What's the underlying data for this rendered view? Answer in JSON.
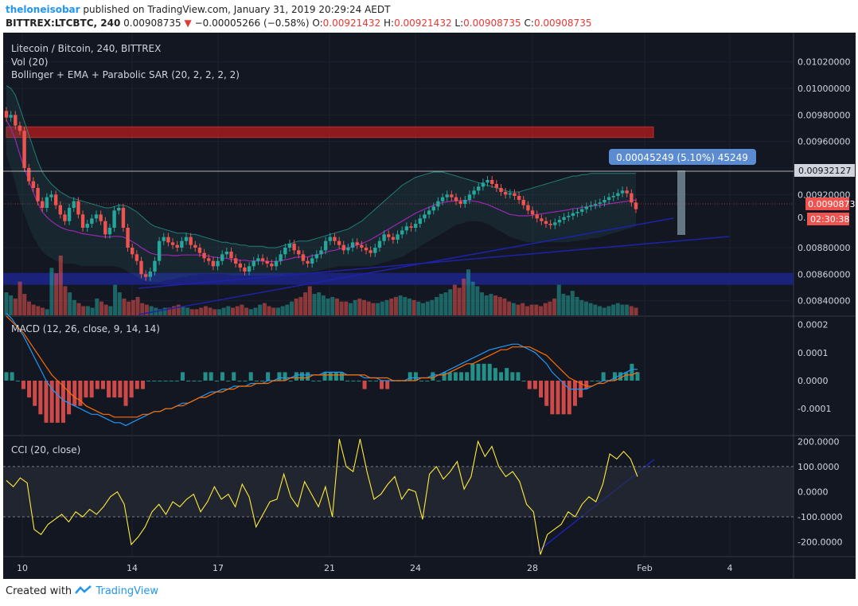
{
  "header": {
    "author": "theloneisobar",
    "published_text": "published on TradingView.com, January 31, 2019 20:29:24 AEDT",
    "symbol": "BITTREX:LTCBTC, 240",
    "last": "0.00908735",
    "change_arrow": "▼",
    "change": "−0.00005266 (−0.58%)",
    "o_label": "O:",
    "o": "0.00921432",
    "h_label": "H:",
    "h": "0.00921432",
    "l_label": "L:",
    "l": "0.00908735",
    "c_label": "C:",
    "c": "0.00908735"
  },
  "legend": {
    "title": "Litecoin / Bitcoin, 240, BITTREX",
    "vol": "Vol (20)",
    "bb": "Bollinger + EMA + Parabolic SAR (20, 2, 2, 2, 2)",
    "macd": "MACD (12, 26, close, 9, 14, 14)",
    "cci": "CCI (20, close)"
  },
  "price_labels": {
    "current_line": "0.00932127",
    "last_price": "0.00908735",
    "countdown": "02:30:38",
    "partial": "0.",
    "measure": "0.00045249 (5.10%) 45249"
  },
  "footer": {
    "prefix": "Created with",
    "brand": "TradingView"
  },
  "colors": {
    "background": "#131722",
    "up": "#26a69a",
    "down": "#ef5350",
    "macd_line": "#2196f3",
    "signal_line": "#ff6d00",
    "cci_line": "#ffeb3b",
    "trendline": "#1e22aa",
    "resistance_zone": "#b71c1c",
    "support_zone": "#1a237e"
  },
  "chart_data": [
    {
      "type": "candlestick",
      "title": "Litecoin / Bitcoin, 240, BITTREX",
      "x_ticks": [
        "10",
        "14",
        "17",
        "21",
        "24",
        "28",
        "Feb",
        "4"
      ],
      "y_ticks": [
        "0.01020000",
        "0.01000000",
        "0.00980000",
        "0.00960000",
        "0.00940000",
        "0.00920000",
        "0.00880000",
        "0.00860000",
        "0.00840000"
      ],
      "y_tick_values": [
        0.0102,
        0.01,
        0.0098,
        0.0096,
        0.0094,
        0.0092,
        0.0088,
        0.0086,
        0.0084
      ],
      "ylim": [
        0.00829,
        0.01039
      ],
      "close": [
        0.00978,
        0.0098,
        0.00972,
        0.00968,
        0.0094,
        0.0093,
        0.00925,
        0.00915,
        0.0091,
        0.00918,
        0.0092,
        0.00912,
        0.00905,
        0.009,
        0.0091,
        0.00915,
        0.00905,
        0.00895,
        0.00898,
        0.00902,
        0.00905,
        0.009,
        0.0089,
        0.00895,
        0.00908,
        0.0091,
        0.00895,
        0.0088,
        0.00875,
        0.0087,
        0.0086,
        0.00858,
        0.00862,
        0.0087,
        0.00885,
        0.00888,
        0.00884,
        0.00882,
        0.0088,
        0.00885,
        0.00888,
        0.00882,
        0.0088,
        0.00876,
        0.00872,
        0.0087,
        0.00866,
        0.0087,
        0.00875,
        0.00877,
        0.00872,
        0.00868,
        0.00865,
        0.00862,
        0.00866,
        0.0087,
        0.00872,
        0.0087,
        0.00868,
        0.00866,
        0.0087,
        0.00875,
        0.0088,
        0.00883,
        0.00878,
        0.00875,
        0.0087,
        0.00868,
        0.00872,
        0.00875,
        0.00878,
        0.00885,
        0.00888,
        0.00885,
        0.00882,
        0.00878,
        0.0088,
        0.00884,
        0.00882,
        0.0088,
        0.00878,
        0.00876,
        0.0088,
        0.00885,
        0.0089,
        0.00888,
        0.00886,
        0.0089,
        0.00893,
        0.00896,
        0.00895,
        0.00898,
        0.00902,
        0.00905,
        0.00908,
        0.00911,
        0.00915,
        0.00918,
        0.0092,
        0.00918,
        0.00915,
        0.00913,
        0.00916,
        0.0092,
        0.00923,
        0.00926,
        0.00929,
        0.00931,
        0.00928,
        0.00925,
        0.00922,
        0.0092,
        0.00921,
        0.00919,
        0.00916,
        0.00912,
        0.00908,
        0.00905,
        0.00902,
        0.009,
        0.00898,
        0.00897,
        0.00899,
        0.00901,
        0.00903,
        0.00904,
        0.00906,
        0.00907,
        0.00909,
        0.00911,
        0.00912,
        0.00913,
        0.00914,
        0.00916,
        0.00918,
        0.00919,
        0.00921,
        0.00923,
        0.00921,
        0.00914,
        0.00909
      ],
      "bb_upper": [
        0.01002,
        0.01,
        0.00995,
        0.00985,
        0.00975,
        0.00965,
        0.00955,
        0.00945,
        0.00937,
        0.00932,
        0.00928,
        0.00925,
        0.00922,
        0.0092,
        0.00918,
        0.00917,
        0.00916,
        0.00915,
        0.00914,
        0.00913,
        0.00912,
        0.00911,
        0.0091,
        0.0091,
        0.00911,
        0.00912,
        0.00912,
        0.00911,
        0.00909,
        0.00907,
        0.00904,
        0.00901,
        0.00898,
        0.00896,
        0.00895,
        0.00894,
        0.00893,
        0.00892,
        0.00891,
        0.00891,
        0.00891,
        0.0089,
        0.0089,
        0.00889,
        0.00888,
        0.00887,
        0.00886,
        0.00885,
        0.00884,
        0.00884,
        0.00883,
        0.00883,
        0.00882,
        0.00882,
        0.00881,
        0.00881,
        0.00881,
        0.00881,
        0.0088,
        0.0088,
        0.0088,
        0.00881,
        0.00882,
        0.00883,
        0.00884,
        0.00885,
        0.00885,
        0.00885,
        0.00886,
        0.00887,
        0.00888,
        0.00889,
        0.0089,
        0.00891,
        0.00892,
        0.00893,
        0.00894,
        0.00896,
        0.00898,
        0.009,
        0.00903,
        0.00906,
        0.00909,
        0.00912,
        0.00915,
        0.00918,
        0.00921,
        0.00924,
        0.00927,
        0.00929,
        0.00931,
        0.00933,
        0.00934,
        0.00935,
        0.00936,
        0.00937,
        0.00937,
        0.00937,
        0.00936,
        0.00935,
        0.00934,
        0.00933,
        0.00932,
        0.00931,
        0.0093,
        0.00929,
        0.00928,
        0.00927,
        0.00926,
        0.00925,
        0.00924,
        0.00923,
        0.00922,
        0.00922,
        0.00922,
        0.00923,
        0.00924,
        0.00925,
        0.00926,
        0.00927,
        0.00928,
        0.00929,
        0.0093,
        0.00931,
        0.00932,
        0.00933,
        0.00934,
        0.00934,
        0.00935,
        0.00935,
        0.00936,
        0.00936,
        0.00936,
        0.00936,
        0.00936,
        0.00936,
        0.00936,
        0.00936,
        0.00936,
        0.00936,
        0.00936,
        0.00935,
        0.00934
      ],
      "bb_lower": [
        0.0095,
        0.0094,
        0.00928,
        0.00915,
        0.00905,
        0.00896,
        0.00888,
        0.00882,
        0.00877,
        0.00874,
        0.00872,
        0.0087,
        0.00869,
        0.00868,
        0.00868,
        0.00868,
        0.00867,
        0.00866,
        0.00866,
        0.00866,
        0.00866,
        0.00866,
        0.00866,
        0.00866,
        0.00866,
        0.00865,
        0.00864,
        0.00862,
        0.0086,
        0.00858,
        0.00856,
        0.00855,
        0.00854,
        0.00854,
        0.00854,
        0.00855,
        0.00856,
        0.00856,
        0.00857,
        0.00858,
        0.00858,
        0.00859,
        0.00859,
        0.0086,
        0.0086,
        0.0086,
        0.0086,
        0.0086,
        0.0086,
        0.0086,
        0.00859,
        0.00859,
        0.00859,
        0.00859,
        0.00859,
        0.00859,
        0.00859,
        0.00859,
        0.00859,
        0.00859,
        0.00859,
        0.00859,
        0.0086,
        0.0086,
        0.00861,
        0.00861,
        0.00861,
        0.00861,
        0.00862,
        0.00862,
        0.00863,
        0.00864,
        0.00865,
        0.00865,
        0.00866,
        0.00866,
        0.00866,
        0.00866,
        0.00866,
        0.00866,
        0.00866,
        0.00866,
        0.00867,
        0.00868,
        0.00869,
        0.0087,
        0.00871,
        0.00872,
        0.00873,
        0.00875,
        0.00877,
        0.00879,
        0.00881,
        0.00883,
        0.00885,
        0.00887,
        0.00889,
        0.00891,
        0.00893,
        0.00895,
        0.00897,
        0.00898,
        0.00899,
        0.009,
        0.009,
        0.009,
        0.00899,
        0.00898,
        0.00896,
        0.00894,
        0.00892,
        0.0089,
        0.00888,
        0.00887,
        0.00886,
        0.00885,
        0.00884,
        0.00884,
        0.00884,
        0.00884,
        0.00884,
        0.00884,
        0.00884,
        0.00884,
        0.00884,
        0.00884,
        0.00885,
        0.00885,
        0.00886,
        0.00886,
        0.00887,
        0.00887,
        0.00888,
        0.00889,
        0.0089,
        0.00891,
        0.00892,
        0.00893,
        0.00894,
        0.00895,
        0.00896,
        0.00897,
        0.00898
      ],
      "zones": [
        {
          "name": "resistance",
          "from": 0.00963,
          "to": 0.00971
        },
        {
          "name": "support",
          "from": 0.00852,
          "to": 0.00861
        }
      ]
    },
    {
      "type": "bar",
      "title": "Vol (20)",
      "values": [
        30,
        26,
        22,
        44,
        28,
        18,
        14,
        12,
        10,
        8,
        62,
        55,
        78,
        38,
        30,
        20,
        16,
        12,
        12,
        10,
        22,
        18,
        14,
        12,
        40,
        30,
        22,
        18,
        20,
        24,
        16,
        14,
        12,
        10,
        8,
        10,
        10,
        12,
        14,
        12,
        10,
        8,
        8,
        10,
        12,
        10,
        8,
        8,
        10,
        12,
        10,
        12,
        14,
        10,
        8,
        10,
        14,
        16,
        12,
        10,
        10,
        12,
        14,
        18,
        22,
        24,
        30,
        38,
        28,
        30,
        26,
        22,
        24,
        22,
        18,
        18,
        16,
        20,
        22,
        20,
        18,
        16,
        16,
        18,
        20,
        22,
        24,
        26,
        24,
        22,
        20,
        18,
        16,
        18,
        20,
        24,
        28,
        30,
        34,
        40,
        36,
        48,
        60,
        44,
        38,
        30,
        26,
        28,
        26,
        24,
        22,
        18,
        16,
        14,
        16,
        12,
        14,
        14,
        12,
        16,
        18,
        22,
        40,
        28,
        26,
        32,
        24,
        20,
        18,
        16,
        14,
        12,
        10,
        12,
        14,
        16,
        14,
        14,
        12,
        10
      ]
    },
    {
      "type": "line",
      "title": "MACD (12, 26, close, 9, 14, 14)",
      "y_ticks": [
        "0.0002",
        "0.0001",
        "0.0000",
        "-0.0001"
      ],
      "y_tick_values": [
        0.0002,
        0.0001,
        0.0,
        -0.0001
      ],
      "ylim": [
        -0.000193,
        0.000227
      ],
      "series": [
        {
          "name": "MACD",
          "values": [
            0.00024,
            0.00022,
            0.00019,
            0.00016,
            0.00012,
            8e-05,
            4e-05,
            0.0,
            -3e-05,
            -5e-05,
            -7e-05,
            -8e-05,
            -9e-05,
            -0.0001,
            -0.00011,
            -0.00012,
            -0.00012,
            -0.00013,
            -0.00014,
            -0.00015,
            -0.00015,
            -0.00016,
            -0.00015,
            -0.00014,
            -0.00013,
            -0.00012,
            -0.00011,
            -0.00011,
            -0.0001,
            -0.0001,
            -9e-05,
            -8e-05,
            -8e-05,
            -7e-05,
            -6e-05,
            -5e-05,
            -4e-05,
            -4e-05,
            -3e-05,
            -3e-05,
            -2e-05,
            -2e-05,
            -2e-05,
            -1e-05,
            -1e-05,
            -1e-05,
            0.0,
            0.0,
            1e-05,
            1e-05,
            1e-05,
            2e-05,
            2e-05,
            2e-05,
            2e-05,
            2e-05,
            3e-05,
            3e-05,
            3e-05,
            3e-05,
            2e-05,
            2e-05,
            2e-05,
            1e-05,
            1e-05,
            1e-05,
            0.0,
            0.0,
            0.0,
            0.0,
            0.0,
            1e-05,
            1e-05,
            1e-05,
            1e-05,
            2e-05,
            2e-05,
            3e-05,
            4e-05,
            5e-05,
            6e-05,
            7e-05,
            8e-05,
            9e-05,
            0.0001,
            0.00011,
            0.000115,
            0.00012,
            0.000125,
            0.00013,
            0.00013,
            0.00012,
            0.00011,
            0.0001,
            8e-05,
            6e-05,
            3e-05,
            1e-05,
            -1e-05,
            -3e-05,
            -3e-05,
            -3e-05,
            -3e-05,
            -2e-05,
            -1e-05,
            0.0,
            0.0,
            1e-05,
            2e-05,
            3e-05,
            4e-05,
            4e-05
          ]
        },
        {
          "name": "Signal",
          "values": [
            0.00023,
            0.00021,
            0.00019,
            0.00017,
            0.00014,
            0.00011,
            8e-05,
            5e-05,
            2e-05,
            0.0,
            -2e-05,
            -4e-05,
            -6e-05,
            -7e-05,
            -9e-05,
            -0.0001,
            -0.00011,
            -0.00012,
            -0.00012,
            -0.00013,
            -0.00013,
            -0.00013,
            -0.00013,
            -0.00013,
            -0.00012,
            -0.00012,
            -0.00011,
            -0.00011,
            -0.0001,
            -0.0001,
            -9e-05,
            -9e-05,
            -8e-05,
            -7e-05,
            -6e-05,
            -6e-05,
            -5e-05,
            -4e-05,
            -4e-05,
            -3e-05,
            -3e-05,
            -2e-05,
            -2e-05,
            -2e-05,
            -1e-05,
            -1e-05,
            -1e-05,
            0.0,
            0.0,
            0.0,
            1e-05,
            1e-05,
            1e-05,
            1e-05,
            2e-05,
            2e-05,
            2e-05,
            2e-05,
            2e-05,
            2e-05,
            2e-05,
            2e-05,
            2e-05,
            2e-05,
            1e-05,
            1e-05,
            1e-05,
            1e-05,
            0.0,
            0.0,
            0.0,
            0.0,
            0.0,
            1e-05,
            1e-05,
            1e-05,
            2e-05,
            2e-05,
            3e-05,
            4e-05,
            5e-05,
            6e-05,
            6e-05,
            7e-05,
            8e-05,
            9e-05,
            0.0001,
            0.00011,
            0.00011,
            0.00012,
            0.00012,
            0.00012,
            0.00012,
            0.00011,
            0.0001,
            9e-05,
            7e-05,
            5e-05,
            3e-05,
            1e-05,
            0.0,
            -1e-05,
            -2e-05,
            -2e-05,
            -1e-05,
            -1e-05,
            0.0,
            0.0,
            1e-05,
            2e-05,
            2e-05,
            3e-05
          ]
        }
      ]
    },
    {
      "type": "line",
      "title": "CCI (20, close)",
      "y_ticks": [
        "200.0000",
        "100.0000",
        "0.0000",
        "-100.0000",
        "-200.0000"
      ],
      "y_tick_values": [
        200,
        100,
        0,
        -100,
        -200
      ],
      "ylim": [
        -255,
        220
      ],
      "series": [
        {
          "name": "CCI",
          "values": [
            45,
            20,
            55,
            35,
            -150,
            -170,
            -130,
            -110,
            -90,
            -120,
            -80,
            -100,
            -70,
            -90,
            -60,
            -20,
            0,
            -50,
            -210,
            -180,
            -140,
            -80,
            -50,
            -90,
            -40,
            -60,
            -30,
            -10,
            -80,
            -40,
            20,
            -30,
            -10,
            -60,
            30,
            -20,
            -140,
            -90,
            -40,
            -30,
            70,
            -20,
            -60,
            40,
            -10,
            -60,
            20,
            -100,
            210,
            100,
            80,
            210,
            80,
            -30,
            -10,
            30,
            60,
            -30,
            10,
            0,
            -110,
            70,
            100,
            50,
            80,
            120,
            10,
            60,
            200,
            140,
            180,
            100,
            60,
            80,
            40,
            -50,
            -80,
            -250,
            -170,
            -150,
            -130,
            -80,
            -100,
            -50,
            -20,
            -40,
            30,
            150,
            130,
            160,
            130,
            60
          ]
        }
      ]
    }
  ]
}
